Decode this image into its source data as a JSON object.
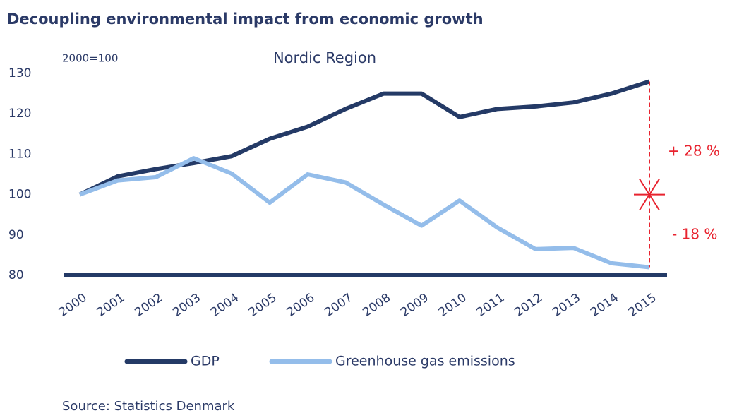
{
  "chart_data": {
    "type": "line",
    "title": "Decoupling environmental impact from economic growth",
    "subtitle": "Nordic Region",
    "y_axis_note": "2000=100",
    "categories": [
      "2000",
      "2001",
      "2002",
      "2003",
      "2004",
      "2005",
      "2006",
      "2007",
      "2008",
      "2009",
      "2010",
      "2011",
      "2012",
      "2013",
      "2014",
      "2015"
    ],
    "series": [
      {
        "name": "GDP",
        "color": "#243a66",
        "values": [
          100,
          104.5,
          106.3,
          107.8,
          109.5,
          113.8,
          116.8,
          121.2,
          125,
          125,
          119.2,
          121.2,
          121.8,
          122.8,
          125,
          128
        ]
      },
      {
        "name": "Greenhouse gas emissions",
        "color": "#94bdea",
        "values": [
          100,
          103.5,
          104.3,
          109,
          105.2,
          98,
          105,
          103,
          97.5,
          92.3,
          98.5,
          91.8,
          86.5,
          86.8,
          83,
          82
        ]
      }
    ],
    "ylim": [
      80,
      130
    ],
    "yticks": [
      80,
      90,
      100,
      110,
      120,
      130
    ],
    "annotations": [
      "+ 28 %",
      "- 18 %"
    ],
    "annotation_color": "#e8232f",
    "source": "Source: Statistics Denmark"
  }
}
